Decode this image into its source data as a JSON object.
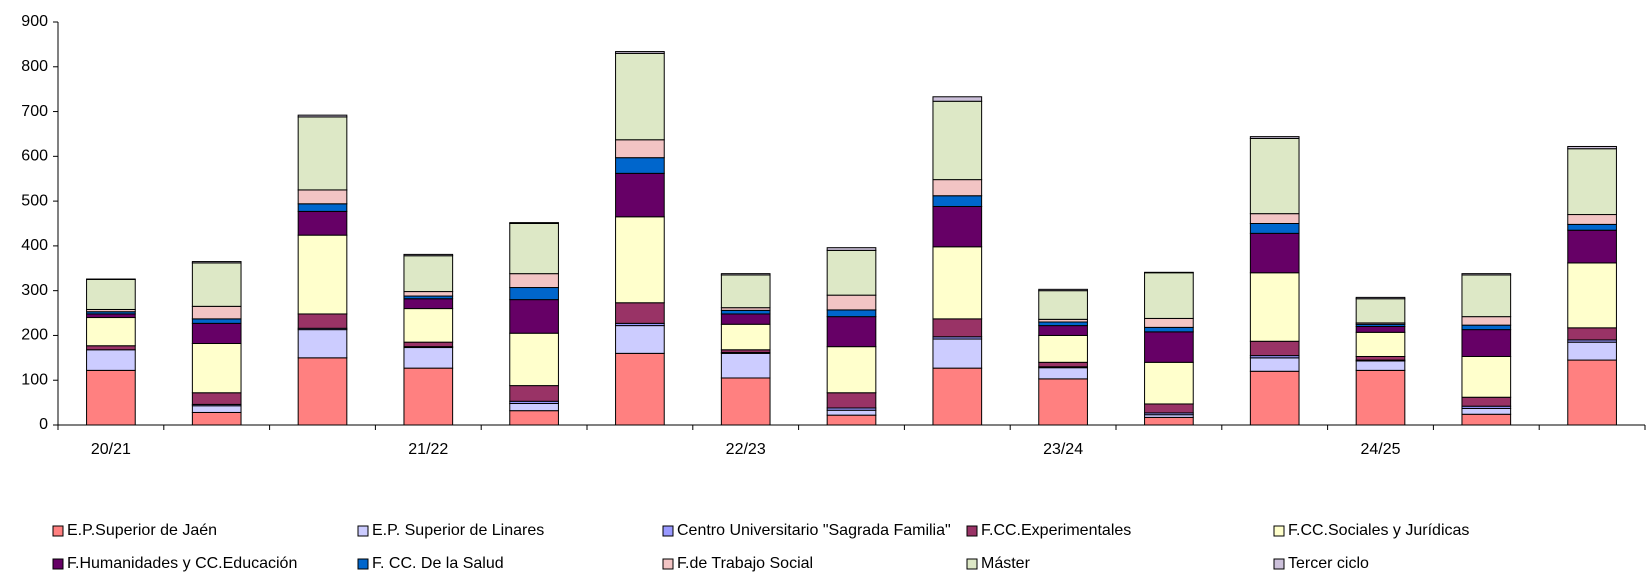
{
  "chart_data": {
    "type": "stacked_bar",
    "categories": [
      "20/21",
      null,
      null,
      "21/22",
      null,
      null,
      "22/23",
      null,
      null,
      "23/24",
      null,
      null,
      "24/25",
      null,
      null
    ],
    "ylim": [
      0,
      900
    ],
    "yticks": [
      0,
      100,
      200,
      300,
      400,
      500,
      600,
      700,
      800,
      900
    ],
    "series": [
      {
        "name": "E.P.Superior de Jaén",
        "color": "#ff8080",
        "values": [
          122,
          28,
          150,
          127,
          32,
          160,
          105,
          22,
          127,
          103,
          17,
          120,
          122,
          24,
          145
        ]
      },
      {
        "name": "E.P. Superior de Linares",
        "color": "#ccccff",
        "values": [
          46,
          15,
          63,
          46,
          16,
          62,
          55,
          11,
          65,
          25,
          6,
          30,
          21,
          13,
          40
        ]
      },
      {
        "name": "Centro Universitario \"Sagrada Familia\"",
        "color": "#9999ff",
        "values": [
          0,
          3,
          3,
          2,
          5,
          5,
          2,
          5,
          5,
          2,
          4,
          5,
          2,
          5,
          5
        ]
      },
      {
        "name": "F.CC.Experimentales",
        "color": "#993366",
        "values": [
          9,
          26,
          32,
          10,
          35,
          46,
          6,
          34,
          40,
          10,
          20,
          32,
          8,
          20,
          27
        ]
      },
      {
        "name": "F.CC.Sociales y Jurídicas",
        "color": "#ffffcc",
        "values": [
          63,
          110,
          176,
          75,
          117,
          192,
          57,
          103,
          161,
          60,
          93,
          153,
          54,
          91,
          145
        ]
      },
      {
        "name": "F.Humanidades y CC.Educación",
        "color": "#660066",
        "values": [
          8,
          45,
          53,
          22,
          75,
          97,
          23,
          67,
          90,
          22,
          68,
          88,
          13,
          60,
          73
        ]
      },
      {
        "name": "F. CC. De la Salud",
        "color": "#0066cc",
        "values": [
          5,
          10,
          17,
          6,
          27,
          35,
          8,
          15,
          24,
          8,
          10,
          22,
          5,
          10,
          13
        ]
      },
      {
        "name": "F.de Trabajo Social",
        "color": "#f2c4c4",
        "values": [
          5,
          28,
          31,
          10,
          31,
          40,
          6,
          33,
          36,
          6,
          20,
          22,
          3,
          19,
          22
        ]
      },
      {
        "name": "Máster",
        "color": "#dde8c6",
        "values": [
          67,
          97,
          163,
          80,
          112,
          193,
          73,
          100,
          175,
          64,
          102,
          168,
          54,
          93,
          147
        ]
      },
      {
        "name": "Tercer ciclo",
        "color": "#ccc0da",
        "values": [
          1,
          3,
          4,
          3,
          2,
          4,
          3,
          6,
          10,
          3,
          1,
          4,
          3,
          3,
          5
        ]
      }
    ]
  }
}
